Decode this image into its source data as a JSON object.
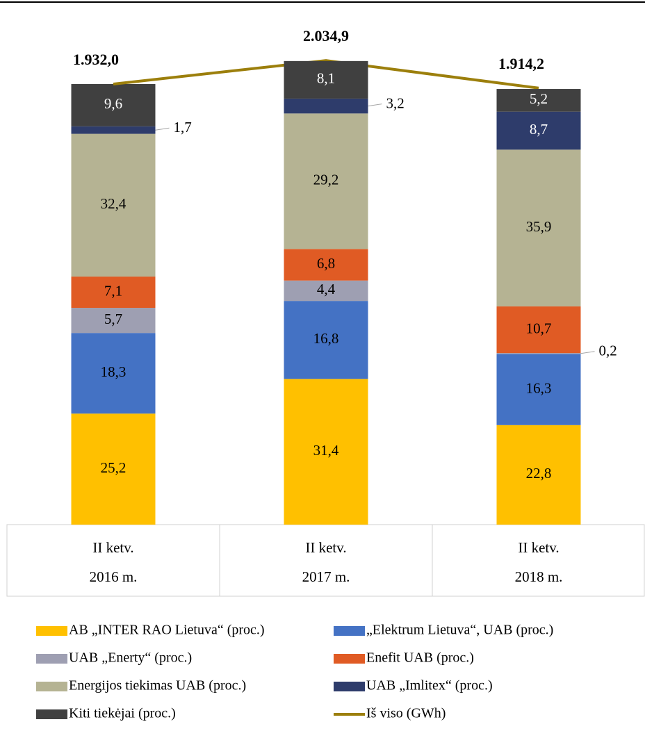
{
  "chart_data": {
    "type": "stacked-bar-line",
    "categories": [
      [
        "II ketv.",
        "2016 m."
      ],
      [
        "II ketv.",
        "2017 m."
      ],
      [
        "II ketv.",
        "2018 m."
      ]
    ],
    "series": [
      {
        "name": "AB „INTER RAO Lietuva“ (proc.)",
        "color": "#ffc000",
        "values": [
          25.2,
          31.4,
          22.8
        ],
        "value_labels": [
          "25,2",
          "31,4",
          "22,8"
        ]
      },
      {
        "name": "„Elektrum Lietuva“, UAB (proc.)",
        "color": "#4472c4",
        "values": [
          18.3,
          16.8,
          16.3
        ],
        "value_labels": [
          "18,3",
          "16,8",
          "16,3"
        ]
      },
      {
        "name": "UAB „Enerty“ (proc.)",
        "color": "#9e9fb2",
        "values": [
          5.7,
          4.4,
          0.2
        ],
        "value_labels": [
          "5,7",
          "4,4",
          "0,2"
        ]
      },
      {
        "name": "Enefit UAB (proc.)",
        "color": "#e05b24",
        "values": [
          7.1,
          6.8,
          10.7
        ],
        "value_labels": [
          "7,1",
          "6,8",
          "10,7"
        ]
      },
      {
        "name": "Energijos tiekimas UAB (proc.)",
        "color": "#b5b393",
        "values": [
          32.4,
          29.2,
          35.9
        ],
        "value_labels": [
          "32,4",
          "29,2",
          "35,9"
        ]
      },
      {
        "name": "UAB „Imlitex“ (proc.)",
        "color": "#2e3c6b",
        "values": [
          1.7,
          3.2,
          8.7
        ],
        "value_labels": [
          "1,7",
          "3,2",
          "8,7"
        ]
      },
      {
        "name": "Kiti tiekėjai (proc.)",
        "color": "#404040",
        "values": [
          9.6,
          8.1,
          5.2
        ],
        "value_labels": [
          "9,6",
          "8,1",
          "5,2"
        ]
      },
      {
        "name": "Iš viso (GWh)",
        "color": "#9c7f0c",
        "axis": "y2",
        "values": [
          1932.0,
          2034.9,
          1914.2
        ],
        "value_labels": [
          "1.932,0",
          "2.034,9",
          "1.914,2"
        ]
      }
    ],
    "y2lim": [
      0,
      2200
    ]
  }
}
